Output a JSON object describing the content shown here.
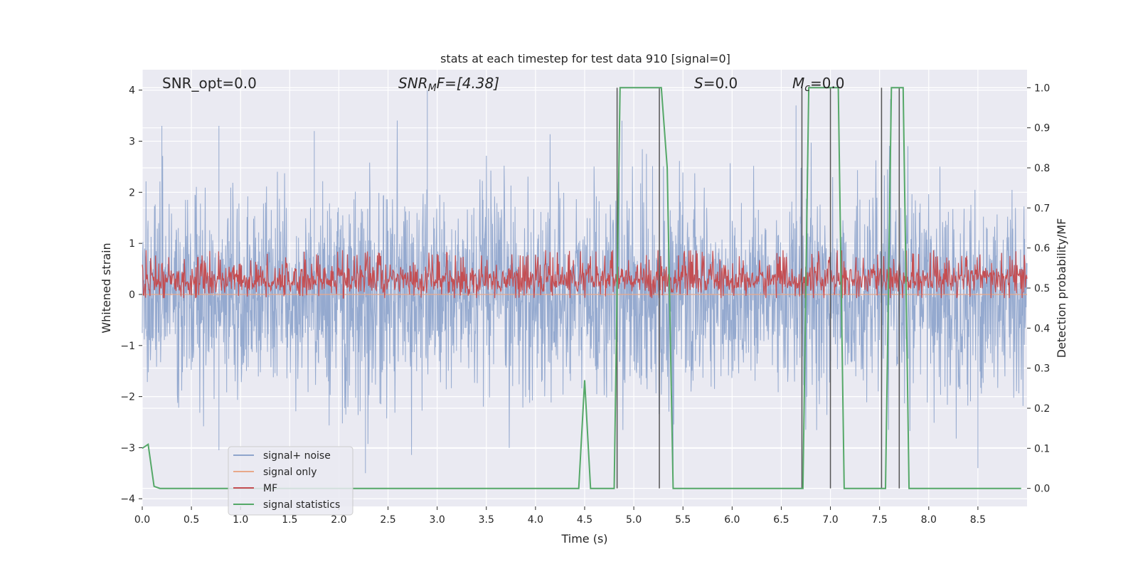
{
  "chart_data": {
    "type": "line",
    "title": "stats at each timestep for test data 910 [signal=0]",
    "xlabel": "Time (s)",
    "ylabel": "Whitened strain",
    "y2label": "Detection probability/MF",
    "xlim": [
      0.0,
      9.0
    ],
    "ylim": [
      -4.15,
      4.4
    ],
    "y2lim": [
      -0.045,
      1.045
    ],
    "x_ticks": [
      0.0,
      0.5,
      1.0,
      1.5,
      2.0,
      2.5,
      3.0,
      3.5,
      4.0,
      4.5,
      5.0,
      5.5,
      6.0,
      6.5,
      7.0,
      7.5,
      8.0,
      8.5
    ],
    "x_tick_labels": [
      "0.0",
      "0.5",
      "1.0",
      "1.5",
      "2.0",
      "2.5",
      "3.0",
      "3.5",
      "4.0",
      "4.5",
      "5.0",
      "5.5",
      "6.0",
      "6.5",
      "7.0",
      "7.5",
      "8.0",
      "8.5"
    ],
    "y_ticks": [
      -4,
      -3,
      -2,
      -1,
      0,
      1,
      2,
      3,
      4
    ],
    "y_tick_labels": [
      "−4",
      "−3",
      "−2",
      "−1",
      "0",
      "1",
      "2",
      "3",
      "4"
    ],
    "y2_ticks": [
      0.0,
      0.1,
      0.2,
      0.3,
      0.4,
      0.5,
      0.6,
      0.7,
      0.8,
      0.9,
      1.0
    ],
    "y2_tick_labels": [
      "0.0",
      "0.1",
      "0.2",
      "0.3",
      "0.4",
      "0.5",
      "0.6",
      "0.7",
      "0.8",
      "0.9",
      "1.0"
    ],
    "grid": true,
    "legend_position": "lower-left",
    "annotations": {
      "snr_opt": "SNR_opt=0.0",
      "snr_mf_sym": "SNR",
      "snr_mf_sub": "M",
      "snr_mf_rest": "F=[4.38]",
      "s_sym": "S",
      "s_rest": "=0.0",
      "mc_sym": "M",
      "mc_sub": "c",
      "mc_rest": "=0.0"
    },
    "series": [
      {
        "name": "signal+ noise",
        "color": "#8fa5cc",
        "axis": "left",
        "kind": "noise",
        "sample_rate_hz": 2048,
        "envelope_std": 1.0,
        "peak_examples": [
          {
            "x": 0.2,
            "y": 3.3
          },
          {
            "x": 0.78,
            "y": 3.3
          },
          {
            "x": 1.75,
            "y": 3.2
          },
          {
            "x": 2.9,
            "y": 4.0
          },
          {
            "x": 4.88,
            "y": 3.4
          },
          {
            "x": 6.65,
            "y": 3.7
          },
          {
            "x": 2.27,
            "y": -3.5
          },
          {
            "x": 8.5,
            "y": -3.4
          },
          {
            "x": 0.78,
            "y": -3.05
          },
          {
            "x": 5.4,
            "y": -3.8
          }
        ]
      },
      {
        "name": "signal only",
        "color": "#e8a88a",
        "axis": "left",
        "kind": "flat",
        "value": 0.0
      },
      {
        "name": "MF",
        "color": "#c44e52",
        "axis": "right",
        "kind": "noise-band",
        "baseline": 0.52,
        "band": [
          0.485,
          0.595
        ],
        "max_value": 0.6
      },
      {
        "name": "signal statistics",
        "color": "#55a868",
        "axis": "right",
        "kind": "line",
        "x": [
          0.0,
          0.06,
          0.12,
          0.18,
          4.44,
          4.5,
          4.56,
          4.8,
          4.86,
          4.92,
          5.28,
          5.34,
          5.4,
          5.46,
          6.72,
          6.78,
          6.84,
          7.08,
          7.14,
          7.2,
          7.56,
          7.62,
          7.68,
          7.74,
          7.8,
          7.86,
          8.94
        ],
        "y": [
          0.1,
          0.11,
          0.005,
          0.0,
          0.0,
          0.27,
          0.0,
          0.0,
          1.0,
          1.0,
          1.0,
          0.8,
          0.0,
          0.0,
          0.0,
          1.0,
          1.0,
          1.0,
          0.0,
          0.0,
          0.0,
          1.0,
          1.0,
          1.0,
          0.0,
          0.0,
          0.0
        ]
      }
    ],
    "vertical_lines": [
      {
        "x": 4.83,
        "color": "#555555"
      },
      {
        "x": 5.26,
        "color": "#555555"
      },
      {
        "x": 6.71,
        "color": "#555555"
      },
      {
        "x": 7.0,
        "color": "#555555"
      },
      {
        "x": 7.52,
        "color": "#555555"
      },
      {
        "x": 7.7,
        "color": "#555555"
      }
    ]
  }
}
